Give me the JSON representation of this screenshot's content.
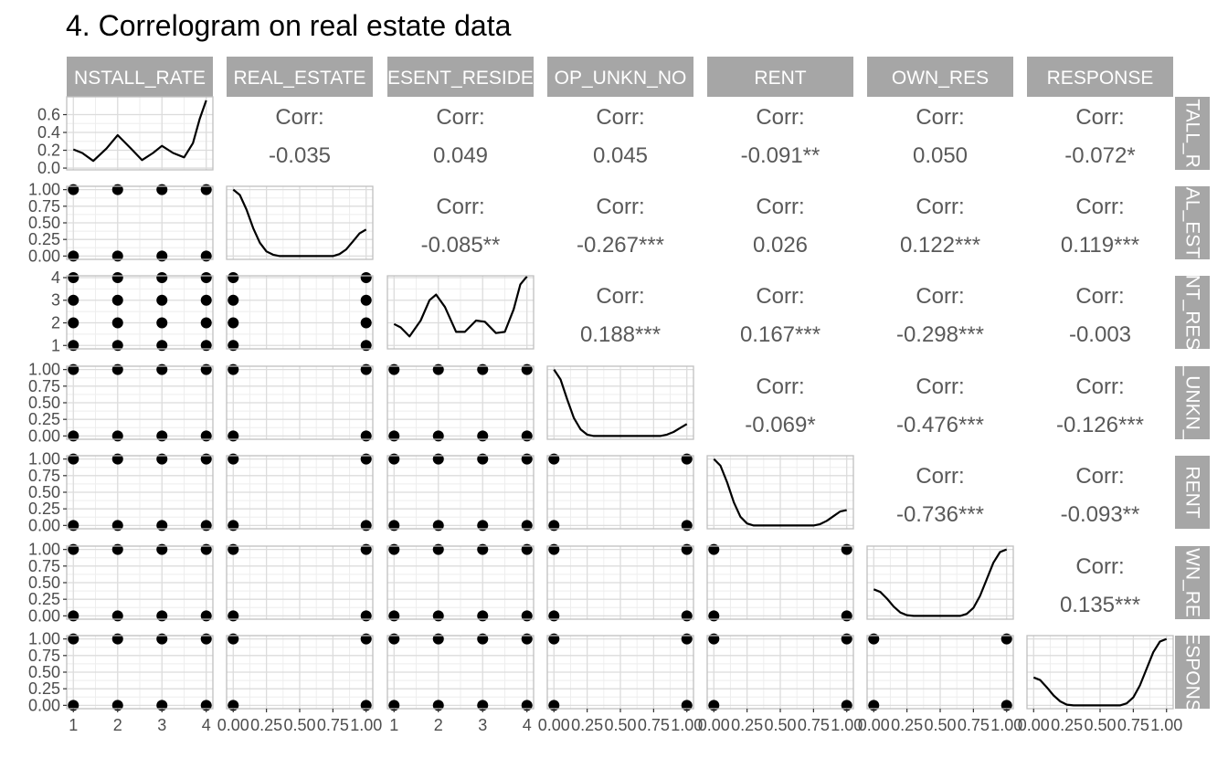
{
  "chart_data": {
    "type": "correlogram",
    "title": "4. Correlogram on real estate data",
    "variables": [
      "INSTALL_RATE",
      "REAL_ESTATE",
      "PRESENT_RESIDENT",
      "PROP_UNKN_NONE",
      "RENT",
      "OWN_RES",
      "RESPONSE"
    ],
    "column_strip_labels": [
      "NSTALL_RATE",
      "REAL_ESTATE",
      "ESENT_RESIDE",
      "OP_UNKN_NO",
      "RENT",
      "OWN_RES",
      "RESPONSE"
    ],
    "row_strip_labels": [
      "TALL_R",
      "AL_EST",
      "NT_RES",
      "_UNKN_",
      "RENT",
      "WN_RE",
      "ESPONS"
    ],
    "corr_label": "Corr:",
    "correlations": [
      {
        "row": 0,
        "col": 1,
        "value": "-0.035"
      },
      {
        "row": 0,
        "col": 2,
        "value": "0.049"
      },
      {
        "row": 0,
        "col": 3,
        "value": "0.045"
      },
      {
        "row": 0,
        "col": 4,
        "value": "-0.091**"
      },
      {
        "row": 0,
        "col": 5,
        "value": "0.050"
      },
      {
        "row": 0,
        "col": 6,
        "value": "-0.072*"
      },
      {
        "row": 1,
        "col": 2,
        "value": "-0.085**"
      },
      {
        "row": 1,
        "col": 3,
        "value": "-0.267***"
      },
      {
        "row": 1,
        "col": 4,
        "value": "0.026"
      },
      {
        "row": 1,
        "col": 5,
        "value": "0.122***"
      },
      {
        "row": 1,
        "col": 6,
        "value": "0.119***"
      },
      {
        "row": 2,
        "col": 3,
        "value": "0.188***"
      },
      {
        "row": 2,
        "col": 4,
        "value": "0.167***"
      },
      {
        "row": 2,
        "col": 5,
        "value": "-0.298***"
      },
      {
        "row": 2,
        "col": 6,
        "value": "-0.003"
      },
      {
        "row": 3,
        "col": 4,
        "value": "-0.069*"
      },
      {
        "row": 3,
        "col": 5,
        "value": "-0.476***"
      },
      {
        "row": 3,
        "col": 6,
        "value": "-0.126***"
      },
      {
        "row": 4,
        "col": 5,
        "value": "-0.736***"
      },
      {
        "row": 4,
        "col": 6,
        "value": "-0.093**"
      },
      {
        "row": 5,
        "col": 6,
        "value": "0.135***"
      }
    ],
    "row_y_ranges": [
      [
        -0.02,
        0.8
      ],
      [
        -0.05,
        1.05
      ],
      [
        0.85,
        4.08
      ],
      [
        -0.05,
        1.05
      ],
      [
        -0.05,
        1.05
      ],
      [
        -0.05,
        1.05
      ],
      [
        -0.05,
        1.05
      ]
    ],
    "col_x_ranges": [
      [
        0.85,
        4.15
      ],
      [
        -0.05,
        1.05
      ],
      [
        0.85,
        4.15
      ],
      [
        -0.05,
        1.05
      ],
      [
        -0.05,
        1.05
      ],
      [
        -0.05,
        1.05
      ],
      [
        -0.05,
        1.05
      ]
    ],
    "row_y_ticks": [
      [
        "0.0",
        "0.2",
        "0.4",
        "0.6"
      ],
      [
        "0.00",
        "0.25",
        "0.50",
        "0.75",
        "1.00"
      ],
      [
        "1",
        "2",
        "3",
        "4"
      ],
      [
        "0.00",
        "0.25",
        "0.50",
        "0.75",
        "1.00"
      ],
      [
        "0.00",
        "0.25",
        "0.50",
        "0.75",
        "1.00"
      ],
      [
        "0.00",
        "0.25",
        "0.50",
        "0.75",
        "1.00"
      ],
      [
        "0.00",
        "0.25",
        "0.50",
        "0.75",
        "1.00"
      ]
    ],
    "col_x_ticks": [
      [
        "1",
        "2",
        "3",
        "4"
      ],
      [
        "0.00",
        "0.25",
        "0.50",
        "0.75",
        "1.00"
      ],
      [
        "1",
        "2",
        "3",
        "4"
      ],
      [
        "0.00",
        "0.25",
        "0.50",
        "0.75",
        "1.00"
      ],
      [
        "0.00",
        "0.25",
        "0.50",
        "0.75",
        "1.00"
      ],
      [
        "0.00",
        "0.25",
        "0.50",
        "0.75",
        "1.00"
      ],
      [
        "0.00",
        "0.25",
        "0.50",
        "0.75",
        "1.00"
      ]
    ],
    "var_values": [
      [
        1,
        2,
        3,
        4
      ],
      [
        0,
        1
      ],
      [
        1,
        2,
        3,
        4
      ],
      [
        0,
        1
      ],
      [
        0,
        1
      ],
      [
        0,
        1
      ],
      [
        0,
        1
      ]
    ],
    "densities": [
      {
        "var": 0,
        "points": [
          [
            1.0,
            0.21
          ],
          [
            1.2,
            0.17
          ],
          [
            1.45,
            0.08
          ],
          [
            1.75,
            0.22
          ],
          [
            2.0,
            0.37
          ],
          [
            2.3,
            0.22
          ],
          [
            2.55,
            0.09
          ],
          [
            2.8,
            0.17
          ],
          [
            3.0,
            0.25
          ],
          [
            3.25,
            0.17
          ],
          [
            3.5,
            0.12
          ],
          [
            3.7,
            0.28
          ],
          [
            3.85,
            0.55
          ],
          [
            4.0,
            0.76
          ]
        ]
      },
      {
        "var": 1,
        "points": [
          [
            0.0,
            1.0
          ],
          [
            0.05,
            0.92
          ],
          [
            0.1,
            0.7
          ],
          [
            0.15,
            0.42
          ],
          [
            0.2,
            0.2
          ],
          [
            0.25,
            0.07
          ],
          [
            0.3,
            0.02
          ],
          [
            0.35,
            0.0
          ],
          [
            0.75,
            0.0
          ],
          [
            0.8,
            0.03
          ],
          [
            0.85,
            0.1
          ],
          [
            0.9,
            0.22
          ],
          [
            0.95,
            0.34
          ],
          [
            1.0,
            0.4
          ]
        ]
      },
      {
        "var": 2,
        "points": [
          [
            1.0,
            1.95
          ],
          [
            1.15,
            1.8
          ],
          [
            1.35,
            1.4
          ],
          [
            1.6,
            2.1
          ],
          [
            1.8,
            3.0
          ],
          [
            1.95,
            3.25
          ],
          [
            2.15,
            2.7
          ],
          [
            2.4,
            1.6
          ],
          [
            2.6,
            1.6
          ],
          [
            2.85,
            2.1
          ],
          [
            3.05,
            2.05
          ],
          [
            3.3,
            1.55
          ],
          [
            3.5,
            1.6
          ],
          [
            3.7,
            2.6
          ],
          [
            3.85,
            3.7
          ],
          [
            4.0,
            4.05
          ]
        ]
      },
      {
        "var": 3,
        "points": [
          [
            0.0,
            1.0
          ],
          [
            0.05,
            0.85
          ],
          [
            0.1,
            0.55
          ],
          [
            0.15,
            0.27
          ],
          [
            0.2,
            0.1
          ],
          [
            0.25,
            0.02
          ],
          [
            0.3,
            0.0
          ],
          [
            0.8,
            0.0
          ],
          [
            0.85,
            0.02
          ],
          [
            0.9,
            0.06
          ],
          [
            0.95,
            0.12
          ],
          [
            1.0,
            0.18
          ]
        ]
      },
      {
        "var": 4,
        "points": [
          [
            0.0,
            1.0
          ],
          [
            0.05,
            0.9
          ],
          [
            0.1,
            0.65
          ],
          [
            0.15,
            0.35
          ],
          [
            0.2,
            0.13
          ],
          [
            0.25,
            0.03
          ],
          [
            0.3,
            0.0
          ],
          [
            0.75,
            0.0
          ],
          [
            0.8,
            0.02
          ],
          [
            0.85,
            0.07
          ],
          [
            0.9,
            0.14
          ],
          [
            0.95,
            0.21
          ],
          [
            1.0,
            0.23
          ]
        ]
      },
      {
        "var": 5,
        "points": [
          [
            0.0,
            0.4
          ],
          [
            0.05,
            0.36
          ],
          [
            0.1,
            0.26
          ],
          [
            0.15,
            0.14
          ],
          [
            0.2,
            0.05
          ],
          [
            0.25,
            0.01
          ],
          [
            0.3,
            0.0
          ],
          [
            0.65,
            0.0
          ],
          [
            0.7,
            0.03
          ],
          [
            0.75,
            0.12
          ],
          [
            0.8,
            0.3
          ],
          [
            0.85,
            0.55
          ],
          [
            0.9,
            0.8
          ],
          [
            0.95,
            0.96
          ],
          [
            1.0,
            1.0
          ]
        ]
      },
      {
        "var": 6,
        "points": [
          [
            0.0,
            0.42
          ],
          [
            0.05,
            0.38
          ],
          [
            0.1,
            0.27
          ],
          [
            0.15,
            0.15
          ],
          [
            0.2,
            0.06
          ],
          [
            0.25,
            0.01
          ],
          [
            0.3,
            0.0
          ],
          [
            0.65,
            0.0
          ],
          [
            0.7,
            0.03
          ],
          [
            0.75,
            0.12
          ],
          [
            0.8,
            0.3
          ],
          [
            0.85,
            0.55
          ],
          [
            0.9,
            0.8
          ],
          [
            0.95,
            0.96
          ],
          [
            1.0,
            1.0
          ]
        ]
      }
    ],
    "grid": true,
    "colors": {
      "strip_bg": "#a6a6a6",
      "strip_text": "#ffffff",
      "panel_border": "#bfbfbf",
      "grid_major": "#dcdcdc",
      "grid_minor": "#eeeeee",
      "line": "#000000",
      "point": "#000000",
      "corr_text": "#595959",
      "tick_text": "#4d4d4d"
    }
  }
}
